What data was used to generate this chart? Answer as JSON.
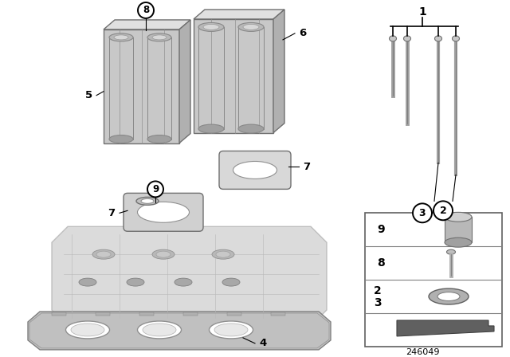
{
  "background_color": "#ffffff",
  "diagram_number": "246049",
  "colors": {
    "line": "#000000",
    "white": "#ffffff",
    "light_gray": "#d4d4d4",
    "mid_gray": "#b0b0b0",
    "dark_gray": "#808080",
    "darker_gray": "#606060",
    "photo_gray": "#c0c0c0",
    "photo_dark": "#a0a0a0"
  }
}
